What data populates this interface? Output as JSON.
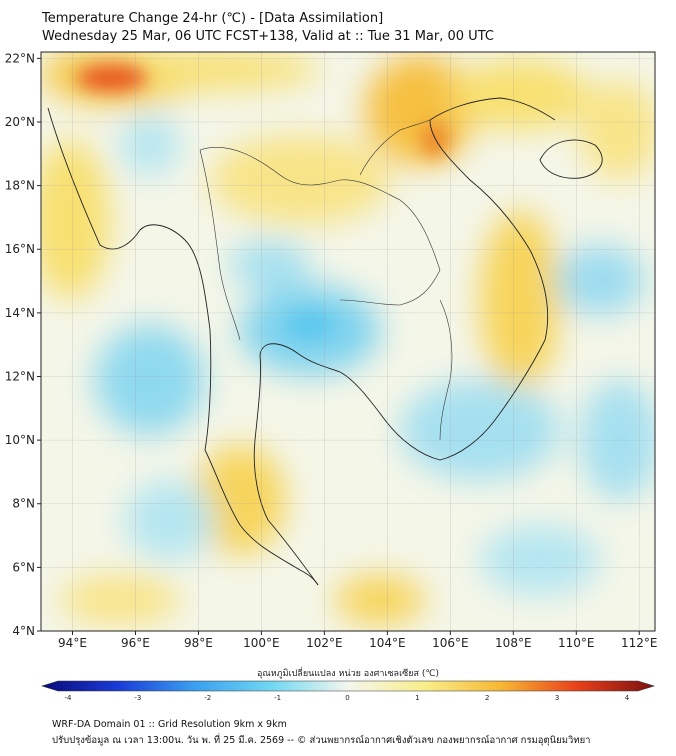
{
  "title": {
    "line1": "Temperature Change 24-hr (℃) - [Data Assimilation]",
    "line2": "Wednesday 25 Mar, 06 UTC FCST+138, Valid at :: Tue 31 Mar, 00 UTC"
  },
  "map": {
    "lon_range": [
      93,
      112.5
    ],
    "lat_range": [
      4,
      22.2
    ],
    "lon_ticks": [
      "94°E",
      "96°E",
      "98°E",
      "100°E",
      "102°E",
      "104°E",
      "106°E",
      "108°E",
      "110°E",
      "112°E"
    ],
    "lon_values": [
      94,
      96,
      98,
      100,
      102,
      104,
      106,
      108,
      110,
      112
    ],
    "lat_ticks": [
      "22°N",
      "20°N",
      "18°N",
      "16°N",
      "14°N",
      "12°N",
      "10°N",
      "8°N",
      "6°N",
      "4°N"
    ],
    "lat_values": [
      22,
      20,
      18,
      16,
      14,
      12,
      10,
      8,
      6,
      4
    ],
    "grid": true,
    "background_color": "#f4f6e8"
  },
  "colorbar": {
    "label": "อุณหภูมิเปลี่ยนแปลง หน่วย องศาเซลเซียส (℃)",
    "range": [
      -4,
      4
    ],
    "tick_labels": [
      "-4",
      "-3",
      "-2",
      "-1",
      "0",
      "1",
      "2",
      "3",
      "4"
    ],
    "tick_values": [
      -4,
      -3,
      -2,
      -1,
      0,
      1,
      2,
      3,
      4
    ],
    "colors": [
      "#0a0a7a",
      "#1a3cd8",
      "#3aa0f0",
      "#6fd8f2",
      "#f4f6ee",
      "#f8ee8a",
      "#f7b734",
      "#e8401a",
      "#7a1010"
    ]
  },
  "footer": {
    "line1": "WRF-DA Domain 01 :: Grid Resolution 9km x 9km",
    "line2": "ปรับปรุงข้อมูล ณ เวลา 13:00น. วัน พ. ที่ 25 มี.ค. 2569 -- © ส่วนพยากรณ์อากาศเชิงตัวเลข กองพยากรณ์อากาศ กรมอุตุนิยมวิทยา"
  }
}
